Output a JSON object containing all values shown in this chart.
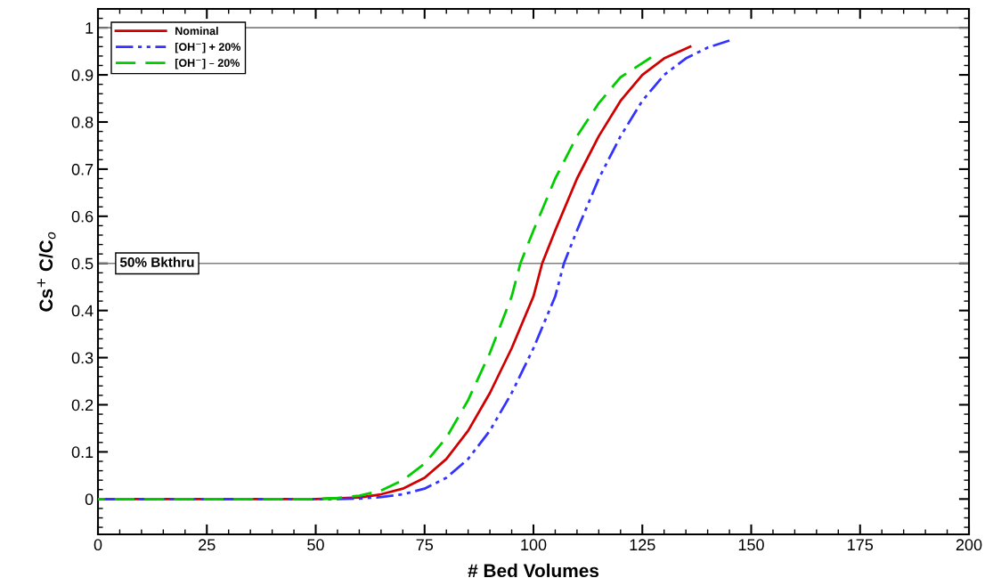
{
  "chart_data": {
    "type": "line",
    "xlabel": "# Bed Volumes",
    "ylabel": "Cs$^{+}$ C/C$_{o}$",
    "xlim": [
      0,
      200
    ],
    "xticks": [
      0,
      25,
      50,
      75,
      100,
      125,
      150,
      175,
      200
    ],
    "ylim": [
      -0.075,
      1.04
    ],
    "yticks": [
      0,
      0.1,
      0.2,
      0.3,
      0.4,
      0.5,
      0.6,
      0.7,
      0.8,
      0.9,
      1
    ],
    "grid": false,
    "legend": "top left",
    "marker": "none",
    "ref_lines": [
      {
        "axis": "y",
        "value": 1,
        "color": "#808080"
      },
      {
        "axis": "y",
        "value": 0.5,
        "label": "50% Bkthru",
        "color": "#808080"
      }
    ],
    "series": [
      {
        "name": "Nominal",
        "color": "#d00000",
        "line_style": "solid",
        "x": [
          0,
          50,
          60,
          65,
          70,
          75,
          80,
          85,
          90,
          95,
          100,
          102,
          105,
          110,
          115,
          120,
          125,
          130,
          136
        ],
        "values": [
          0,
          0,
          0.003,
          0.01,
          0.022,
          0.045,
          0.085,
          0.145,
          0.225,
          0.32,
          0.43,
          0.5,
          0.57,
          0.68,
          0.77,
          0.845,
          0.9,
          0.935,
          0.96
        ]
      },
      {
        "name": "[OH$^{−}$] + 20%",
        "color": "#3333ff",
        "line_style": "dashdotdot",
        "x": [
          0,
          55,
          60,
          65,
          70,
          75,
          80,
          85,
          90,
          95,
          100,
          105,
          107,
          110,
          115,
          120,
          125,
          130,
          135,
          140,
          145
        ],
        "values": [
          0,
          0,
          0.001,
          0.004,
          0.01,
          0.022,
          0.045,
          0.085,
          0.145,
          0.225,
          0.32,
          0.43,
          0.5,
          0.57,
          0.68,
          0.77,
          0.845,
          0.9,
          0.935,
          0.958,
          0.973
        ]
      },
      {
        "name": "[OH$^{−}$] – 20%",
        "color": "#00cc00",
        "line_style": "dashed",
        "x": [
          0,
          50,
          55,
          60,
          65,
          70,
          75,
          80,
          85,
          90,
          95,
          97,
          100,
          105,
          110,
          115,
          120,
          127
        ],
        "values": [
          0,
          0,
          0.002,
          0.007,
          0.018,
          0.04,
          0.075,
          0.13,
          0.21,
          0.31,
          0.43,
          0.5,
          0.57,
          0.68,
          0.77,
          0.84,
          0.895,
          0.937
        ]
      }
    ]
  }
}
